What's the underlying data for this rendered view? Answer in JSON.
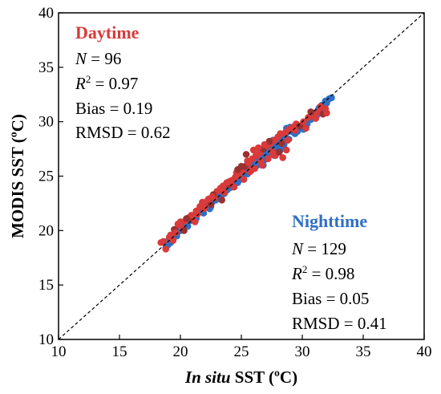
{
  "chart_data": {
    "type": "scatter",
    "xlabel": {
      "italic": "In situ",
      "rest": " SST (ºC)"
    },
    "ylabel": "MODIS SST (ºC)",
    "xlim": [
      10,
      40
    ],
    "ylim": [
      10,
      40
    ],
    "xticks": [
      "10",
      "15",
      "20",
      "25",
      "30",
      "35",
      "40"
    ],
    "yticks": [
      "10",
      "15",
      "20",
      "25",
      "30",
      "35",
      "40"
    ],
    "reference_line": "1:1",
    "grid": false,
    "colors": {
      "daytime": "#d93a3a",
      "nighttime": "#2f6fc4",
      "daytime_dark": "#9a3030"
    },
    "annotations": {
      "daytime": {
        "title": "Daytime",
        "n_label": "N",
        "n_value": " = 96",
        "r2_label": "R",
        "r2_sup": "2",
        "r2_value": " = 0.97",
        "bias": "Bias = 0.19",
        "rmsd": "RMSD = 0.62"
      },
      "nighttime": {
        "title": "Nighttime",
        "n_label": "N",
        "n_value": " = 129",
        "r2_label": "R",
        "r2_sup": "2",
        "r2_value": " = 0.98",
        "bias": "Bias = 0.05",
        "rmsd": "RMSD = 0.41"
      }
    },
    "series": [
      {
        "key": "nighttime",
        "points": [
          [
            18.8,
            18.4
          ],
          [
            19.0,
            18.7
          ],
          [
            19.3,
            19.1
          ],
          [
            19.6,
            19.8
          ],
          [
            19.9,
            20.2
          ],
          [
            20.2,
            20.5
          ],
          [
            20.5,
            20.8
          ],
          [
            20.8,
            20.9
          ],
          [
            21.1,
            21.4
          ],
          [
            21.4,
            21.6
          ],
          [
            21.7,
            21.9
          ],
          [
            22.0,
            22.1
          ],
          [
            22.3,
            22.4
          ],
          [
            22.6,
            22.6
          ],
          [
            22.9,
            22.8
          ],
          [
            23.1,
            23.2
          ],
          [
            23.4,
            23.3
          ],
          [
            23.7,
            23.6
          ],
          [
            24.0,
            23.9
          ],
          [
            24.3,
            24.2
          ],
          [
            24.5,
            24.5
          ],
          [
            24.8,
            24.6
          ],
          [
            25.1,
            25.0
          ],
          [
            25.3,
            25.3
          ],
          [
            25.6,
            25.6
          ],
          [
            25.9,
            25.8
          ],
          [
            26.1,
            26.1
          ],
          [
            26.4,
            26.4
          ],
          [
            26.7,
            26.6
          ],
          [
            27.0,
            27.0
          ],
          [
            27.2,
            27.1
          ],
          [
            27.5,
            27.5
          ],
          [
            27.8,
            27.8
          ],
          [
            28.0,
            28.2
          ],
          [
            28.3,
            28.5
          ],
          [
            28.6,
            28.8
          ],
          [
            28.9,
            29.1
          ],
          [
            29.2,
            29.2
          ],
          [
            29.5,
            29.4
          ],
          [
            29.8,
            29.5
          ],
          [
            30.1,
            29.3
          ],
          [
            30.4,
            29.8
          ],
          [
            30.7,
            30.2
          ],
          [
            31.0,
            30.8
          ],
          [
            31.3,
            31.1
          ],
          [
            31.6,
            31.5
          ],
          [
            31.9,
            31.9
          ],
          [
            32.2,
            32.1
          ],
          [
            32.4,
            32.2
          ],
          [
            31.8,
            31.6
          ],
          [
            19.2,
            18.9
          ],
          [
            20.0,
            20.0
          ],
          [
            20.6,
            20.4
          ],
          [
            21.3,
            21.1
          ],
          [
            21.9,
            21.6
          ],
          [
            22.5,
            22.2
          ],
          [
            23.0,
            22.9
          ],
          [
            23.6,
            23.4
          ],
          [
            24.2,
            24.0
          ],
          [
            24.7,
            24.4
          ],
          [
            25.2,
            25.1
          ],
          [
            25.8,
            25.5
          ],
          [
            26.3,
            26.0
          ],
          [
            26.9,
            26.5
          ],
          [
            27.4,
            27.2
          ],
          [
            27.9,
            27.6
          ],
          [
            28.4,
            28.1
          ],
          [
            28.9,
            28.4
          ],
          [
            29.4,
            28.9
          ],
          [
            30.0,
            29.7
          ],
          [
            27.6,
            28.3
          ],
          [
            27.1,
            27.6
          ],
          [
            26.6,
            27.2
          ],
          [
            28.2,
            27.4
          ],
          [
            27.7,
            26.9
          ],
          [
            28.5,
            27.9
          ],
          [
            26.2,
            26.8
          ],
          [
            25.7,
            26.2
          ],
          [
            26.8,
            26.0
          ],
          [
            25.4,
            25.8
          ],
          [
            24.6,
            24.9
          ],
          [
            24.1,
            24.4
          ],
          [
            23.5,
            23.8
          ],
          [
            22.8,
            23.1
          ],
          [
            22.2,
            22.5
          ],
          [
            21.6,
            21.9
          ],
          [
            21.0,
            21.2
          ],
          [
            20.4,
            20.7
          ],
          [
            19.7,
            19.5
          ],
          [
            19.1,
            19.3
          ],
          [
            28.7,
            29.4
          ],
          [
            29.0,
            29.5
          ],
          [
            29.6,
            29.1
          ],
          [
            30.2,
            30.0
          ],
          [
            30.6,
            30.3
          ],
          [
            31.2,
            30.6
          ],
          [
            31.5,
            31.0
          ],
          [
            27.3,
            27.9
          ],
          [
            26.0,
            26.5
          ],
          [
            25.0,
            25.5
          ],
          [
            23.9,
            24.1
          ],
          [
            23.3,
            23.5
          ],
          [
            22.7,
            22.9
          ],
          [
            22.1,
            22.3
          ],
          [
            21.5,
            21.7
          ],
          [
            20.9,
            21.2
          ],
          [
            20.3,
            20.4
          ],
          [
            19.8,
            19.9
          ],
          [
            18.9,
            19.0
          ],
          [
            24.4,
            24.7
          ],
          [
            25.5,
            25.2
          ],
          [
            26.5,
            26.3
          ],
          [
            27.0,
            26.8
          ],
          [
            27.8,
            27.3
          ],
          [
            28.1,
            28.6
          ],
          [
            28.8,
            28.3
          ],
          [
            29.3,
            29.0
          ],
          [
            30.3,
            29.5
          ],
          [
            30.9,
            30.5
          ],
          [
            31.4,
            31.3
          ],
          [
            32.0,
            31.7
          ],
          [
            22.4,
            22.0
          ],
          [
            23.8,
            23.7
          ],
          [
            26.7,
            26.9
          ],
          [
            27.5,
            27.7
          ],
          [
            28.4,
            27.8
          ],
          [
            29.7,
            29.3
          ],
          [
            24.9,
            25.0
          ],
          [
            21.2,
            21.3
          ]
        ]
      },
      {
        "key": "daytime",
        "points": [
          [
            18.4,
            18.9
          ],
          [
            18.8,
            18.3
          ],
          [
            19.1,
            19.4
          ],
          [
            19.5,
            20.1
          ],
          [
            19.8,
            20.6
          ],
          [
            20.1,
            20.3
          ],
          [
            20.4,
            20.9
          ],
          [
            20.7,
            21.2
          ],
          [
            21.0,
            21.0
          ],
          [
            21.3,
            21.8
          ],
          [
            21.6,
            22.2
          ],
          [
            21.9,
            22.0
          ],
          [
            22.2,
            22.7
          ],
          [
            22.5,
            22.4
          ],
          [
            22.8,
            23.0
          ],
          [
            23.0,
            23.6
          ],
          [
            23.3,
            23.9
          ],
          [
            23.6,
            23.5
          ],
          [
            23.9,
            24.2
          ],
          [
            24.2,
            24.6
          ],
          [
            24.5,
            24.9
          ],
          [
            24.8,
            25.2
          ],
          [
            25.1,
            25.5
          ],
          [
            25.3,
            25.9
          ],
          [
            25.6,
            26.2
          ],
          [
            25.9,
            26.6
          ],
          [
            26.2,
            26.9
          ],
          [
            26.5,
            27.1
          ],
          [
            26.8,
            27.5
          ],
          [
            27.1,
            27.8
          ],
          [
            27.4,
            28.0
          ],
          [
            27.7,
            28.3
          ],
          [
            28.0,
            28.6
          ],
          [
            28.3,
            28.0
          ],
          [
            28.6,
            29.0
          ],
          [
            28.9,
            29.3
          ],
          [
            29.2,
            29.5
          ],
          [
            29.5,
            29.8
          ],
          [
            29.8,
            29.6
          ],
          [
            30.1,
            30.0
          ],
          [
            30.5,
            30.4
          ],
          [
            30.9,
            30.6
          ],
          [
            31.3,
            30.9
          ],
          [
            31.7,
            30.7
          ],
          [
            32.0,
            30.8
          ],
          [
            31.5,
            31.4
          ],
          [
            26.0,
            27.4
          ],
          [
            26.4,
            27.6
          ],
          [
            25.4,
            27.0
          ],
          [
            27.2,
            26.6
          ],
          [
            27.8,
            26.9
          ],
          [
            28.4,
            26.7
          ],
          [
            28.7,
            27.4
          ],
          [
            28.1,
            27.2
          ],
          [
            27.5,
            27.3
          ],
          [
            26.7,
            26.0
          ],
          [
            26.1,
            25.7
          ],
          [
            25.7,
            25.4
          ],
          [
            25.0,
            25.9
          ],
          [
            24.6,
            25.3
          ],
          [
            24.0,
            24.5
          ],
          [
            23.5,
            24.1
          ],
          [
            23.2,
            23.7
          ],
          [
            22.7,
            23.3
          ],
          [
            22.3,
            22.9
          ],
          [
            21.8,
            22.6
          ],
          [
            21.4,
            21.5
          ],
          [
            20.9,
            21.4
          ],
          [
            20.5,
            21.1
          ],
          [
            20.0,
            20.8
          ],
          [
            19.6,
            19.8
          ],
          [
            19.2,
            19.6
          ],
          [
            18.6,
            19.0
          ],
          [
            23.4,
            22.8
          ],
          [
            24.4,
            24.0
          ],
          [
            25.2,
            24.7
          ],
          [
            25.8,
            25.6
          ],
          [
            26.6,
            26.4
          ],
          [
            27.3,
            28.2
          ],
          [
            28.2,
            28.9
          ],
          [
            28.8,
            28.3
          ],
          [
            29.4,
            29.2
          ],
          [
            30.3,
            29.4
          ],
          [
            30.7,
            30.9
          ],
          [
            31.1,
            30.3
          ],
          [
            31.9,
            31.2
          ],
          [
            22.0,
            22.1
          ],
          [
            21.2,
            20.8
          ],
          [
            20.3,
            20.0
          ],
          [
            19.4,
            19.1
          ],
          [
            26.9,
            27.9
          ],
          [
            27.6,
            27.0
          ],
          [
            25.5,
            26.4
          ],
          [
            24.7,
            25.6
          ],
          [
            23.8,
            24.4
          ],
          [
            22.6,
            23.1
          ]
        ]
      }
    ]
  }
}
